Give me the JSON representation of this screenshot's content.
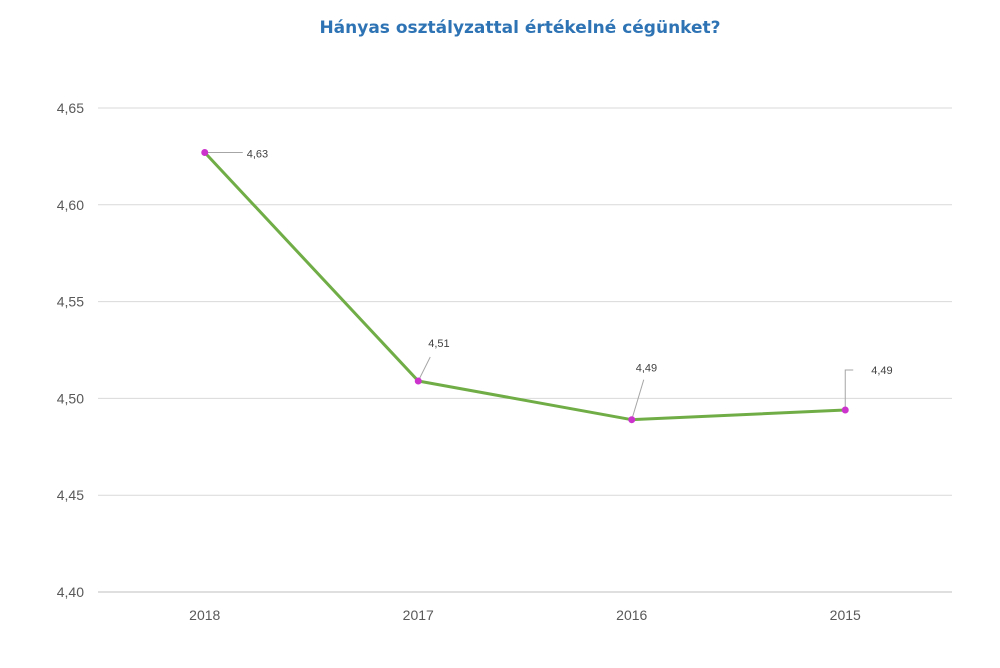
{
  "chart_data": {
    "type": "line",
    "title": "Hányas osztályzattal értékelné cégünket?",
    "categories": [
      "2018",
      "2017",
      "2016",
      "2015"
    ],
    "series": [
      {
        "values": [
          4.627,
          4.509,
          4.489,
          4.494
        ],
        "data_labels": [
          "4,63",
          "4,51",
          "4,49",
          "4,49"
        ]
      }
    ],
    "ylim": [
      4.4,
      4.65
    ],
    "yticks": [
      4.4,
      4.45,
      4.5,
      4.55,
      4.6,
      4.65
    ],
    "ytick_labels": [
      "4,40",
      "4,45",
      "4,50",
      "4,55",
      "4,60",
      "4,65"
    ],
    "xlabel": "",
    "ylabel": "",
    "grid": true,
    "legend": "none",
    "line_color": "#70ad47",
    "marker_color": "#cc33cc",
    "grid_color": "#d9d9d9",
    "axis_color": "#bfbfbf",
    "leader_color": "#a6a6a6"
  }
}
